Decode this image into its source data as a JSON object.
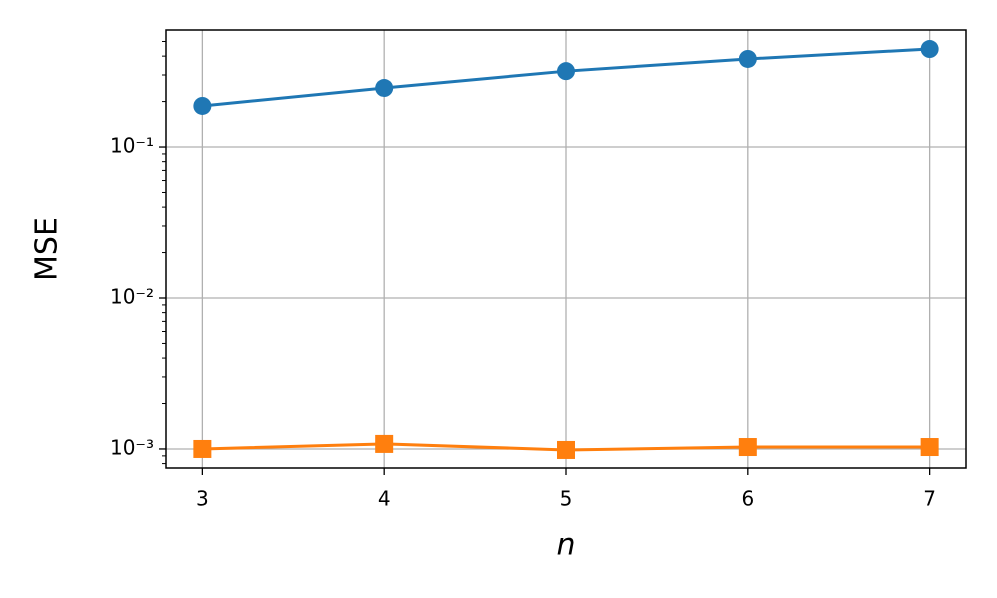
{
  "chart_data": {
    "type": "line",
    "x_label": "n",
    "y_label": "MSE",
    "x": [
      3,
      4,
      5,
      6,
      7
    ],
    "series": [
      {
        "color": "#1f77b4",
        "marker": "circle",
        "values": [
          0.187,
          0.246,
          0.318,
          0.383,
          0.446
        ]
      },
      {
        "color": "#ff7f0e",
        "marker": "square",
        "values": [
          0.001,
          0.00108,
          0.000985,
          0.00103,
          0.00103
        ]
      }
    ],
    "xlim": [
      2.8,
      7.2
    ],
    "xticks": [
      3,
      4,
      5,
      6,
      7
    ],
    "ylim": [
      0.000748,
      0.596
    ],
    "log_y": true,
    "yticks": [
      {
        "value": 0.001,
        "label": "10⁻³"
      },
      {
        "value": 0.01,
        "label": "10⁻²"
      },
      {
        "value": 0.1,
        "label": "10⁻¹"
      }
    ],
    "grid": true
  }
}
